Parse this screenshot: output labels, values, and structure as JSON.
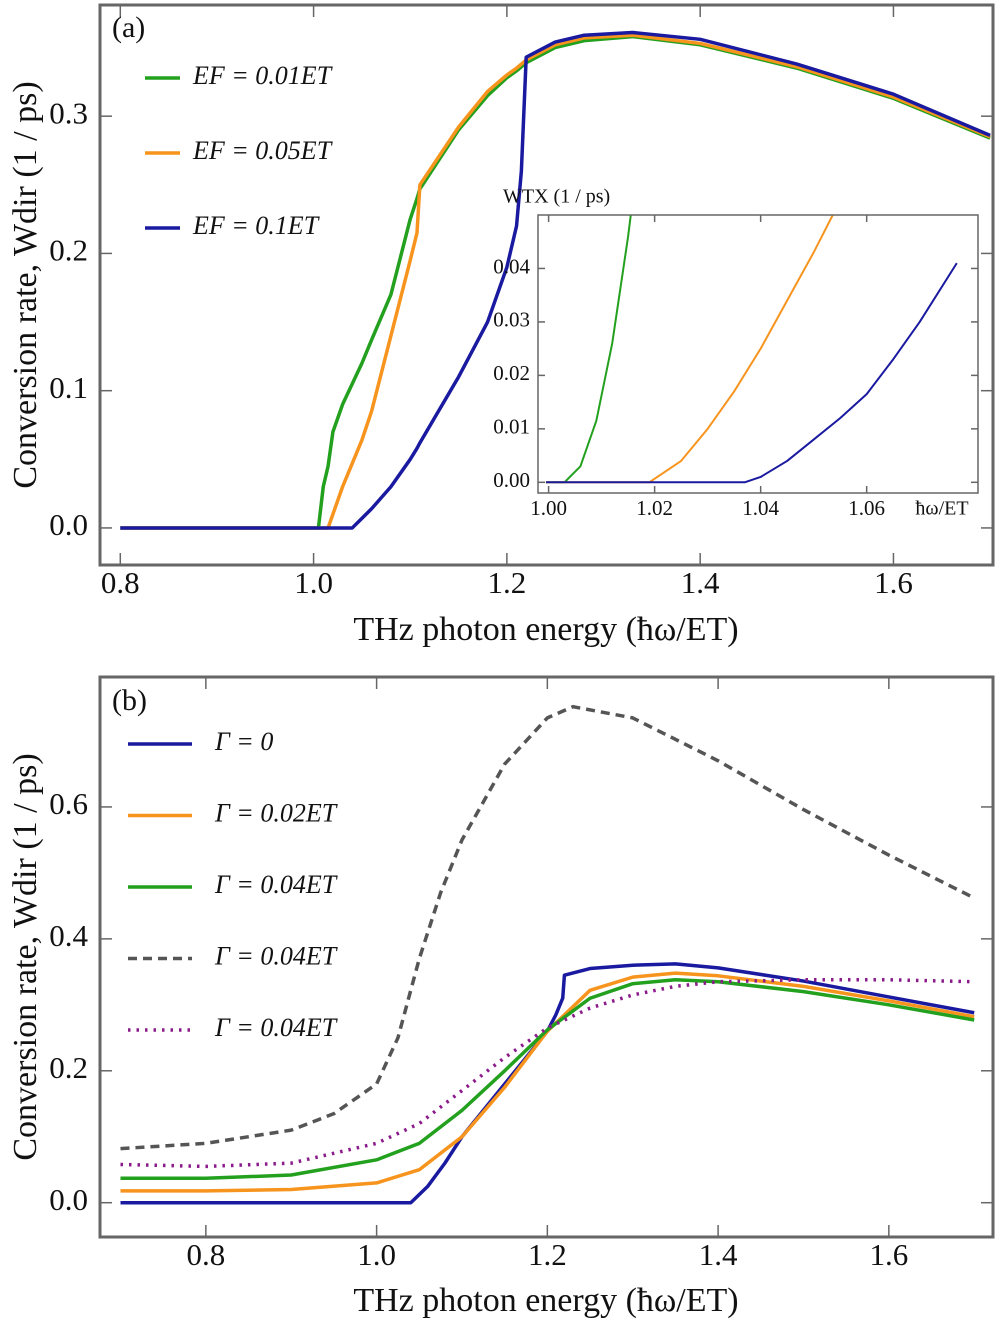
{
  "chart_data": [
    {
      "type": "line",
      "label": "(a)",
      "xlabel": "THz photon energy (ħω/ET)",
      "ylabel": "Conversion rate, Wdir (1 / ps)",
      "xlim": [
        0.779,
        1.703
      ],
      "ylim": [
        -0.027,
        0.381
      ],
      "xticks": [
        0.8,
        {
          "value": 1,
          "label": "1.0"
        },
        1.2,
        1.4,
        1.6
      ],
      "yticks": [
        {
          "value": 0,
          "label": "0.0"
        },
        0.1,
        0.2,
        0.3
      ],
      "legend": "upper left",
      "series": [
        {
          "name": "EF = 0.01ET",
          "color": "#22a01e",
          "dash": "solid",
          "x": [
            0.8,
            1.0,
            1.005,
            1.01,
            1.015,
            1.02,
            1.03,
            1.04,
            1.05,
            1.06,
            1.08,
            1.1,
            1.107,
            1.11,
            1.15,
            1.18,
            1.2,
            1.21,
            1.215,
            1.22,
            1.25,
            1.28,
            1.33,
            1.4,
            1.5,
            1.6,
            1.7
          ],
          "values": [
            0,
            0,
            0,
            0.03,
            0.045,
            0.07,
            0.09,
            0.105,
            0.12,
            0.137,
            0.17,
            0.225,
            0.24,
            0.247,
            0.29,
            0.315,
            0.328,
            0.333,
            0.336,
            0.339,
            0.35,
            0.355,
            0.358,
            0.352,
            0.335,
            0.313,
            0.284
          ]
        },
        {
          "name": "EF = 0.05ET",
          "color": "#f7941d",
          "dash": "solid",
          "x": [
            0.8,
            1.0,
            1.005,
            1.01,
            1.015,
            1.02,
            1.03,
            1.04,
            1.05,
            1.06,
            1.08,
            1.1,
            1.107,
            1.11,
            1.15,
            1.18,
            1.2,
            1.21,
            1.215,
            1.22,
            1.25,
            1.28,
            1.33,
            1.4,
            1.5,
            1.6,
            1.7
          ],
          "values": [
            0,
            0,
            0,
            0,
            0,
            0.01,
            0.03,
            0.047,
            0.064,
            0.085,
            0.14,
            0.195,
            0.215,
            0.25,
            0.292,
            0.318,
            0.33,
            0.335,
            0.338,
            0.341,
            0.352,
            0.357,
            0.359,
            0.353,
            0.336,
            0.314,
            0.285
          ]
        },
        {
          "name": "EF = 0.1ET",
          "color": "#1a1aa0",
          "dash": "solid",
          "x": [
            0.8,
            1.0,
            1.005,
            1.01,
            1.015,
            1.02,
            1.03,
            1.04,
            1.05,
            1.06,
            1.08,
            1.1,
            1.107,
            1.11,
            1.15,
            1.18,
            1.2,
            1.21,
            1.215,
            1.22,
            1.25,
            1.28,
            1.33,
            1.4,
            1.5,
            1.6,
            1.7
          ],
          "values": [
            0,
            0,
            0,
            0,
            0,
            0,
            0,
            0,
            0.007,
            0.014,
            0.03,
            0.05,
            0.058,
            0.062,
            0.11,
            0.15,
            0.19,
            0.22,
            0.26,
            0.343,
            0.354,
            0.359,
            0.361,
            0.356,
            0.338,
            0.316,
            0.286
          ]
        }
      ]
    },
    {
      "type": "line",
      "xlabel": "ħω/ET",
      "ylabel": "WTX (1 / ps)",
      "xlim": [
        0.998,
        1.081
      ],
      "ylim": [
        -0.002,
        0.05
      ],
      "xticks": [
        {
          "value": 1,
          "label": "1.00"
        },
        1.02,
        1.04,
        1.06
      ],
      "yticks": [
        {
          "value": 0,
          "label": "0.00"
        },
        0.01,
        0.02,
        0.03,
        0.04
      ],
      "series": [
        {
          "color": "#22a01e",
          "dash": "solid",
          "x": [
            0.9995,
            1.003,
            1.006,
            1.009,
            1.012,
            1.015,
            1.0155
          ],
          "values": [
            0,
            0,
            0.003,
            0.0115,
            0.026,
            0.046,
            0.05
          ]
        },
        {
          "color": "#f7941d",
          "dash": "solid",
          "x": [
            0.9995,
            1.019,
            1.025,
            1.03,
            1.035,
            1.04,
            1.045,
            1.05,
            1.0536
          ],
          "values": [
            0,
            0,
            0.004,
            0.01,
            0.017,
            0.025,
            0.034,
            0.043,
            0.05
          ]
        },
        {
          "color": "#1a1aa0",
          "dash": "solid",
          "x": [
            0.9995,
            1.037,
            1.04,
            1.045,
            1.05,
            1.055,
            1.06,
            1.065,
            1.07,
            1.077
          ],
          "values": [
            0,
            0,
            0.001,
            0.004,
            0.008,
            0.012,
            0.0165,
            0.023,
            0.03,
            0.041
          ]
        }
      ]
    },
    {
      "type": "line",
      "label": "(b)",
      "xlabel": "THz photon energy (ħω/ET)",
      "ylabel": "Conversion rate, Wdir (1 / ps)",
      "xlim": [
        0.676,
        1.722
      ],
      "ylim": [
        -0.052,
        0.797
      ],
      "xticks": [
        0.8,
        {
          "value": 1,
          "label": "1.0"
        },
        1.2,
        1.4,
        1.6
      ],
      "yticks": [
        {
          "value": 0,
          "label": "0.0"
        },
        0.2,
        0.4,
        0.6
      ],
      "legend": "upper left",
      "series": [
        {
          "name": "Γ = 0",
          "color": "#1a1aa0",
          "dash": "solid",
          "x": [
            0.7,
            1.0,
            1.04,
            1.06,
            1.08,
            1.1,
            1.15,
            1.2,
            1.21,
            1.218,
            1.22,
            1.25,
            1.3,
            1.35,
            1.4,
            1.5,
            1.6,
            1.7
          ],
          "values": [
            0,
            0,
            0,
            0.025,
            0.06,
            0.1,
            0.18,
            0.26,
            0.285,
            0.31,
            0.345,
            0.355,
            0.36,
            0.362,
            0.356,
            0.336,
            0.312,
            0.288
          ]
        },
        {
          "name": "Γ = 0.02ET",
          "color": "#f7941d",
          "dash": "solid",
          "x": [
            0.7,
            0.8,
            0.9,
            1.0,
            1.05,
            1.1,
            1.15,
            1.2,
            1.25,
            1.3,
            1.35,
            1.4,
            1.5,
            1.6,
            1.7
          ],
          "values": [
            0.018,
            0.018,
            0.02,
            0.03,
            0.05,
            0.1,
            0.175,
            0.26,
            0.322,
            0.342,
            0.348,
            0.344,
            0.328,
            0.306,
            0.282
          ]
        },
        {
          "name": "Γ = 0.04ET",
          "color": "#22a01e",
          "dash": "solid",
          "x": [
            0.7,
            0.8,
            0.9,
            1.0,
            1.05,
            1.1,
            1.15,
            1.2,
            1.25,
            1.3,
            1.35,
            1.4,
            1.5,
            1.6,
            1.7
          ],
          "values": [
            0.037,
            0.037,
            0.042,
            0.065,
            0.09,
            0.14,
            0.2,
            0.262,
            0.31,
            0.332,
            0.338,
            0.335,
            0.32,
            0.3,
            0.277
          ]
        },
        {
          "name": "Γ = 0.04ET",
          "color": "#555555",
          "dash": "dashed",
          "x": [
            0.7,
            0.8,
            0.9,
            0.95,
            1.0,
            1.025,
            1.05,
            1.075,
            1.1,
            1.15,
            1.2,
            1.23,
            1.3,
            1.4,
            1.5,
            1.6,
            1.7
          ],
          "values": [
            0.082,
            0.09,
            0.11,
            0.135,
            0.18,
            0.25,
            0.37,
            0.47,
            0.55,
            0.665,
            0.735,
            0.752,
            0.735,
            0.67,
            0.596,
            0.527,
            0.462
          ]
        },
        {
          "name": "Γ = 0.04ET",
          "color": "#8b1a8b",
          "dash": "dotted",
          "x": [
            0.7,
            0.8,
            0.9,
            1.0,
            1.05,
            1.1,
            1.15,
            1.2,
            1.25,
            1.3,
            1.35,
            1.4,
            1.5,
            1.6,
            1.7
          ],
          "values": [
            0.058,
            0.055,
            0.06,
            0.09,
            0.12,
            0.17,
            0.22,
            0.265,
            0.295,
            0.315,
            0.328,
            0.335,
            0.338,
            0.338,
            0.335
          ]
        }
      ]
    }
  ]
}
